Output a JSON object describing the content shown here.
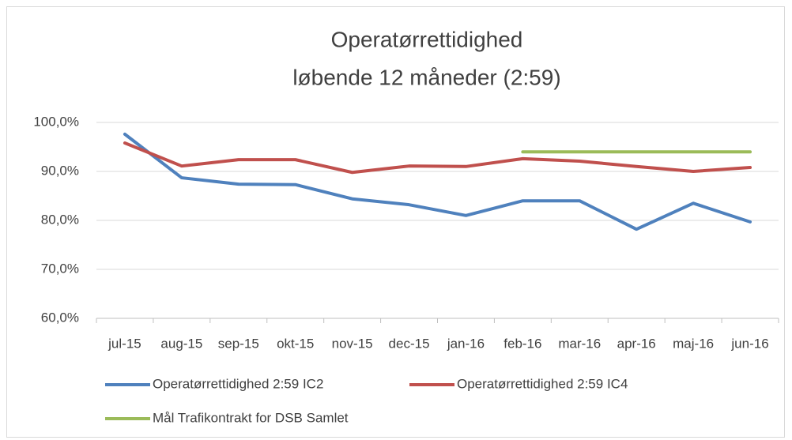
{
  "chart_data": {
    "type": "line",
    "title": [
      "Operatørrettidighed",
      "løbende 12 måneder (2:59)"
    ],
    "categories": [
      "jul-15",
      "aug-15",
      "sep-15",
      "okt-15",
      "nov-15",
      "dec-15",
      "jan-16",
      "feb-16",
      "mar-16",
      "apr-16",
      "maj-16",
      "jun-16"
    ],
    "series": [
      {
        "name": "Operatørrettidighed  2:59 IC2",
        "color": "#4f81bd",
        "values": [
          97.6,
          88.7,
          87.4,
          87.3,
          84.4,
          83.2,
          81.0,
          84.0,
          84.0,
          78.2,
          83.5,
          79.7
        ]
      },
      {
        "name": "Operatørrettidighed  2:59 IC4",
        "color": "#c0504d",
        "values": [
          95.8,
          91.1,
          92.4,
          92.4,
          89.8,
          91.1,
          91.0,
          92.6,
          92.1,
          91.0,
          90.0,
          90.8
        ]
      },
      {
        "name": "Mål Trafikontrakt for DSB Samlet",
        "color": "#9bbb59",
        "values": [
          null,
          null,
          null,
          null,
          null,
          null,
          null,
          94.0,
          94.0,
          94.0,
          94.0,
          94.0
        ]
      }
    ],
    "ylim": [
      60,
      100
    ],
    "yticks": [
      {
        "value": 60,
        "label": "60,0%"
      },
      {
        "value": 70,
        "label": "70,0%"
      },
      {
        "value": 80,
        "label": "80,0%"
      },
      {
        "value": 90,
        "label": "90,0%"
      },
      {
        "value": 100,
        "label": "100,0%"
      }
    ],
    "grid": true
  }
}
